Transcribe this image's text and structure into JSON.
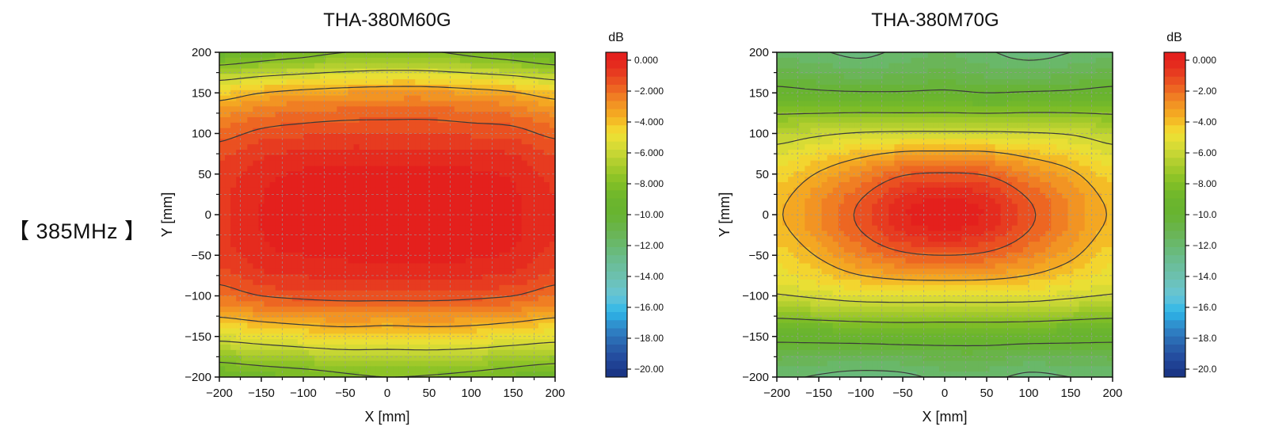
{
  "side_label": "【 385MHz 】",
  "chart_data": [
    {
      "type": "heatmap",
      "subtype": "filled-contour",
      "title": "THA-380M60G",
      "xlabel": "X [mm]",
      "ylabel": "Y [mm]",
      "xlim": [
        -200,
        200
      ],
      "ylim": [
        -200,
        200
      ],
      "xticks": [
        "−200",
        "−150",
        "−100",
        "−50",
        "0",
        "50",
        "100",
        "150",
        "200"
      ],
      "yticks": [
        "200",
        "150",
        "100",
        "50",
        "0",
        "−50",
        "−100",
        "−150",
        "−200"
      ],
      "grid": true,
      "x": [
        -200,
        -150,
        -100,
        -50,
        0,
        50,
        100,
        150,
        200
      ],
      "y": [
        200,
        150,
        100,
        50,
        0,
        -50,
        -100,
        -150,
        -200
      ],
      "z_db": [
        [
          -9.2,
          -8.8,
          -8.4,
          -8.0,
          -7.8,
          -7.9,
          -8.3,
          -8.7,
          -9.2
        ],
        [
          -4.6,
          -4.0,
          -3.7,
          -3.5,
          -3.4,
          -3.4,
          -3.6,
          -3.9,
          -4.5
        ],
        [
          -2.3,
          -1.8,
          -1.6,
          -1.5,
          -1.5,
          -1.5,
          -1.6,
          -1.7,
          -2.2
        ],
        [
          -1.3,
          -0.7,
          -0.4,
          -0.3,
          -0.3,
          -0.3,
          -0.4,
          -0.6,
          -1.2
        ],
        [
          -1.1,
          -0.5,
          -0.2,
          -0.1,
          0.0,
          -0.1,
          -0.2,
          -0.4,
          -1.0
        ],
        [
          -1.3,
          -0.7,
          -0.5,
          -0.4,
          -0.3,
          -0.3,
          -0.4,
          -0.6,
          -1.2
        ],
        [
          -2.5,
          -2.0,
          -1.8,
          -1.7,
          -1.7,
          -1.7,
          -1.8,
          -2.0,
          -2.5
        ],
        [
          -5.6,
          -5.3,
          -5.0,
          -4.8,
          -4.9,
          -4.8,
          -4.9,
          -5.2,
          -5.5
        ],
        [
          -9.0,
          -8.7,
          -8.5,
          -8.2,
          -8.0,
          -8.1,
          -8.3,
          -8.6,
          -8.9
        ]
      ],
      "contour_levels": [
        -2,
        -4,
        -6,
        -8,
        -10,
        -12
      ],
      "colorbar": {
        "label": "dB",
        "range": [
          -20,
          0
        ],
        "ticks": [
          "0.000",
          "−2.000",
          "−4.000",
          "−6.000",
          "−8.000",
          "−10.00",
          "−12.00",
          "−14.00",
          "−16.00",
          "−18.00",
          "−20.00"
        ]
      }
    },
    {
      "type": "heatmap",
      "subtype": "filled-contour",
      "title": "THA-380M70G",
      "xlabel": "X [mm]",
      "ylabel": "Y [mm]",
      "xlim": [
        -200,
        200
      ],
      "ylim": [
        -200,
        200
      ],
      "xticks": [
        "−200",
        "−150",
        "−100",
        "−50",
        "0",
        "50",
        "100",
        "150",
        "200"
      ],
      "yticks": [
        "200",
        "150",
        "100",
        "50",
        "0",
        "−50",
        "−100",
        "−150",
        "−200"
      ],
      "grid": true,
      "x": [
        -200,
        -150,
        -100,
        -50,
        0,
        50,
        100,
        150,
        200
      ],
      "y": [
        200,
        150,
        100,
        50,
        0,
        -50,
        -100,
        -150,
        -200
      ],
      "z_db": [
        [
          -11.6,
          -11.9,
          -12.2,
          -11.8,
          -11.5,
          -11.9,
          -12.3,
          -12.0,
          -11.6
        ],
        [
          -9.6,
          -9.8,
          -9.9,
          -9.9,
          -9.8,
          -10.0,
          -9.9,
          -9.8,
          -9.6
        ],
        [
          -6.6,
          -6.2,
          -5.9,
          -5.8,
          -5.8,
          -5.8,
          -5.9,
          -6.1,
          -6.6
        ],
        [
          -4.8,
          -3.9,
          -3.0,
          -2.1,
          -1.9,
          -2.1,
          -3.0,
          -3.8,
          -4.8
        ],
        [
          -4.1,
          -3.0,
          -1.8,
          -0.6,
          -0.1,
          -0.6,
          -1.8,
          -3.0,
          -4.1
        ],
        [
          -4.8,
          -3.9,
          -2.9,
          -2.2,
          -2.0,
          -2.2,
          -2.9,
          -3.8,
          -4.8
        ],
        [
          -6.1,
          -5.8,
          -5.5,
          -5.4,
          -5.4,
          -5.4,
          -5.5,
          -5.8,
          -6.1
        ],
        [
          -9.6,
          -9.5,
          -9.4,
          -9.3,
          -9.3,
          -9.3,
          -9.4,
          -9.5,
          -9.6
        ],
        [
          -11.8,
          -12.1,
          -12.3,
          -12.2,
          -11.8,
          -11.8,
          -12.2,
          -12.0,
          -11.8
        ]
      ],
      "contour_levels": [
        -2,
        -4,
        -6,
        -8,
        -10,
        -12
      ],
      "colorbar": {
        "label": "dB",
        "range": [
          -20,
          0
        ],
        "ticks": [
          "0.000",
          "−2.00",
          "−4.00",
          "−6.00",
          "−8.00",
          "−10.0",
          "−12.0",
          "−14.0",
          "−16.0",
          "−18.0",
          "−20.0"
        ]
      }
    }
  ],
  "palette": [
    {
      "db": 0,
      "color": "#e31a1c"
    },
    {
      "db": -1,
      "color": "#e5301f"
    },
    {
      "db": -2,
      "color": "#eb5a22"
    },
    {
      "db": -3,
      "color": "#f18a23"
    },
    {
      "db": -4,
      "color": "#f5b022"
    },
    {
      "db": -5,
      "color": "#f2e133"
    },
    {
      "db": -6,
      "color": "#cfd936"
    },
    {
      "db": -7,
      "color": "#a9cc2c"
    },
    {
      "db": -8,
      "color": "#84c025"
    },
    {
      "db": -9,
      "color": "#6cb52d"
    },
    {
      "db": -10,
      "color": "#67b430"
    },
    {
      "db": -11,
      "color": "#6ab450"
    },
    {
      "db": -12,
      "color": "#68b971"
    },
    {
      "db": -13,
      "color": "#6abd97"
    },
    {
      "db": -14,
      "color": "#6cc1b4"
    },
    {
      "db": -15,
      "color": "#67c5d7"
    },
    {
      "db": -16,
      "color": "#2eb6e8"
    },
    {
      "db": -17,
      "color": "#2f86c7"
    },
    {
      "db": -18,
      "color": "#2a63ad"
    },
    {
      "db": -19,
      "color": "#22469a"
    },
    {
      "db": -20,
      "color": "#17307f"
    }
  ]
}
